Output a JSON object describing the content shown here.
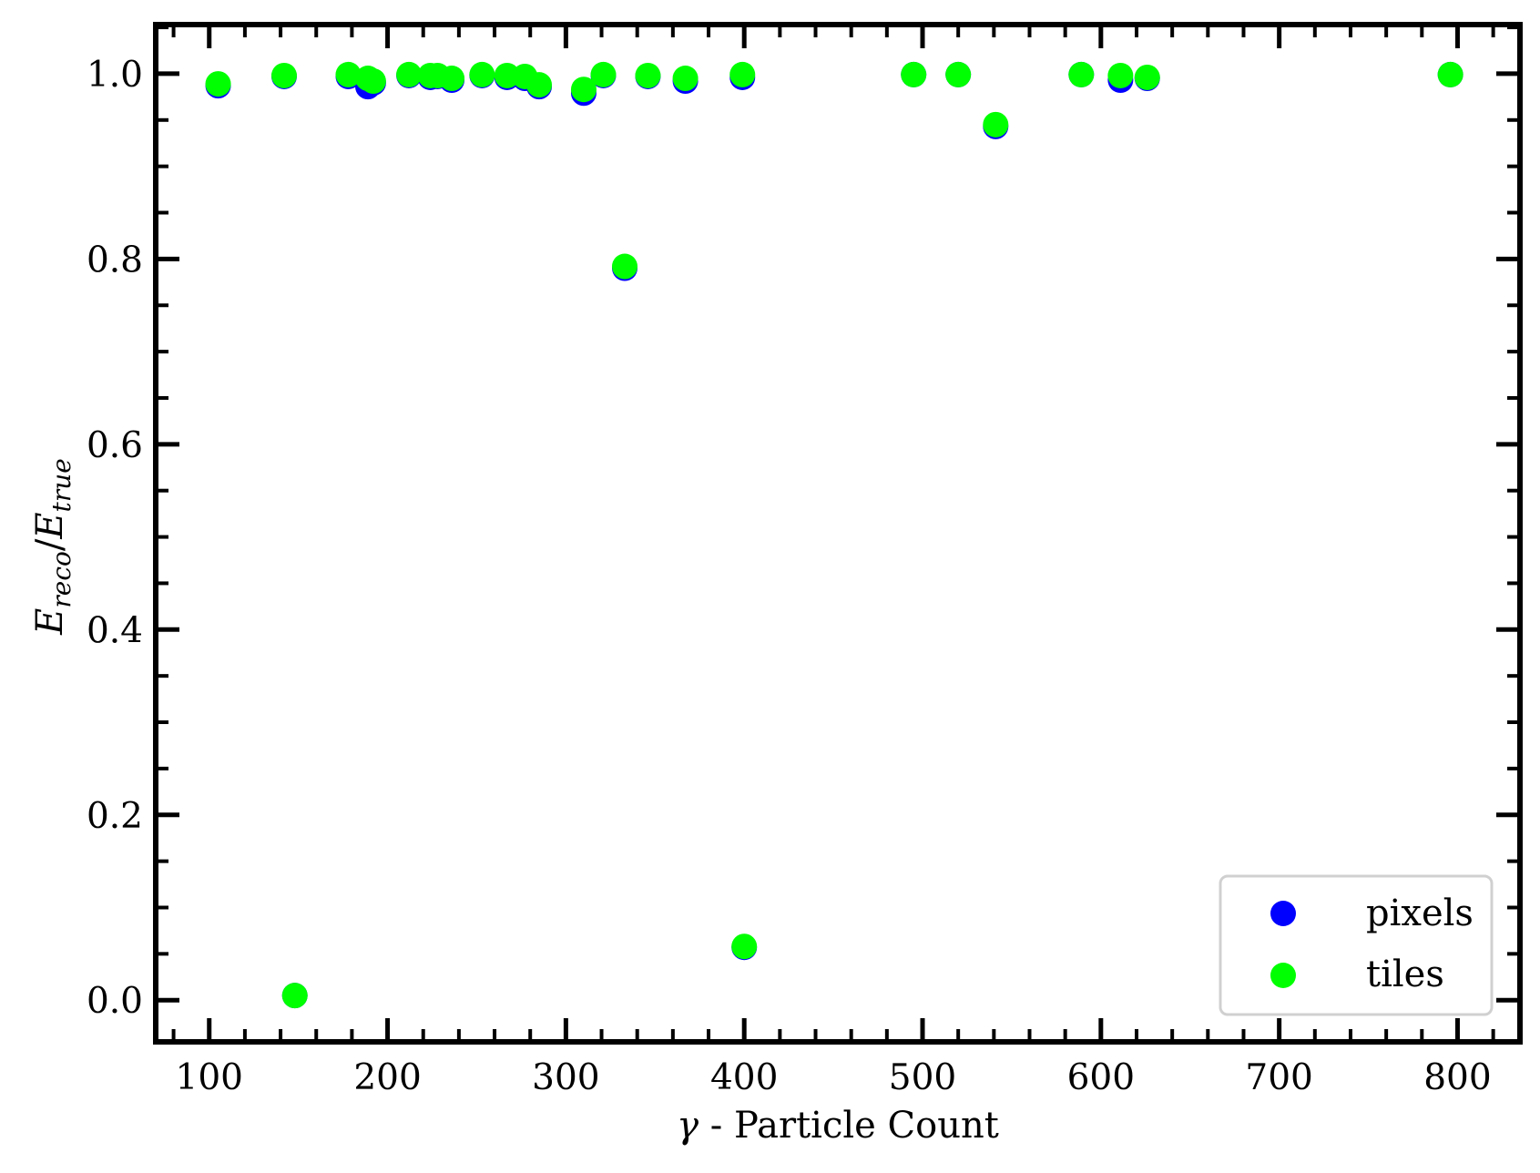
{
  "chart_data": {
    "type": "scatter",
    "xlabel": {
      "symbol": "γ",
      "text": " - Particle Count"
    },
    "ylabel": {
      "base1": "E",
      "sub1": "reco",
      "slash": "/",
      "base2": "E",
      "sub2": "true"
    },
    "xlim": [
      70,
      835
    ],
    "ylim": [
      -0.045,
      1.053
    ],
    "xticks": [
      100,
      200,
      300,
      400,
      500,
      600,
      700,
      800
    ],
    "yticks": [
      0.0,
      0.2,
      0.4,
      0.6,
      0.8,
      1.0
    ],
    "xtick_labels": [
      "100",
      "200",
      "300",
      "400",
      "500",
      "600",
      "700",
      "800"
    ],
    "ytick_labels": [
      "0.0",
      "0.2",
      "0.4",
      "0.6",
      "0.8",
      "1.0"
    ],
    "legend_position": "bottom-right",
    "series": [
      {
        "name": "pixels",
        "color": "#0000ff",
        "x": [
          105,
          142,
          148,
          178,
          189,
          192,
          212,
          224,
          228,
          236,
          253,
          267,
          277,
          285,
          310,
          321,
          333,
          346,
          367,
          399,
          400,
          495,
          520,
          541,
          589,
          611,
          626,
          796
        ],
        "y": [
          0.987,
          0.997,
          0.005,
          0.997,
          0.986,
          0.99,
          0.998,
          0.996,
          0.997,
          0.993,
          0.998,
          0.996,
          0.995,
          0.986,
          0.979,
          0.998,
          0.79,
          0.997,
          0.992,
          0.996,
          0.057,
          0.999,
          0.999,
          0.943,
          0.999,
          0.993,
          0.995,
          0.999
        ]
      },
      {
        "name": "tiles",
        "color": "#00ff00",
        "x": [
          105,
          142,
          148,
          178,
          189,
          192,
          212,
          224,
          228,
          236,
          253,
          267,
          277,
          285,
          310,
          321,
          333,
          346,
          367,
          399,
          400,
          495,
          520,
          541,
          589,
          611,
          626,
          796
        ],
        "y": [
          0.989,
          0.998,
          0.005,
          0.999,
          0.995,
          0.992,
          0.999,
          0.998,
          0.998,
          0.995,
          0.999,
          0.998,
          0.997,
          0.988,
          0.983,
          0.999,
          0.792,
          0.998,
          0.995,
          0.999,
          0.058,
          0.999,
          0.999,
          0.945,
          0.999,
          0.998,
          0.996,
          0.999
        ]
      }
    ]
  }
}
